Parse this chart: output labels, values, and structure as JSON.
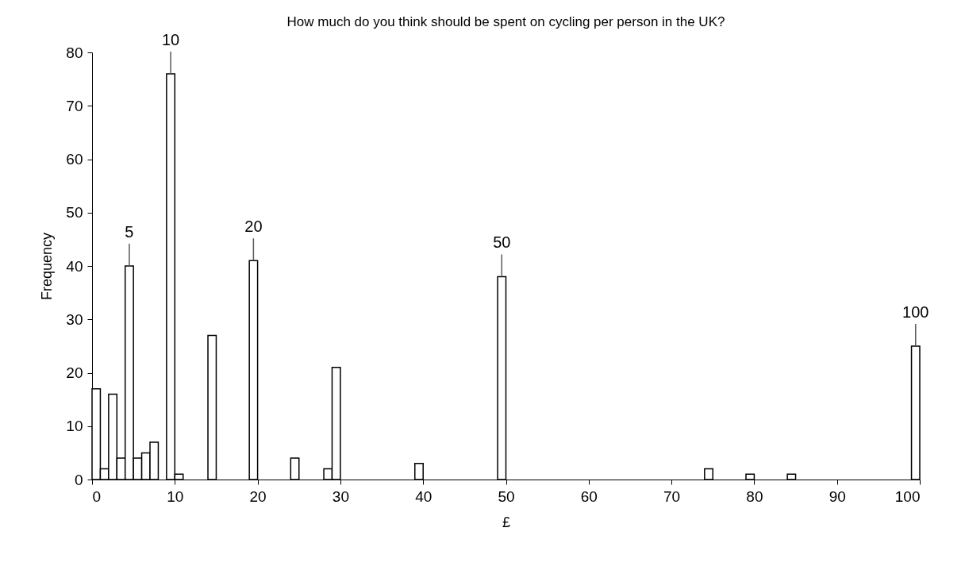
{
  "chart_data": {
    "type": "histogram",
    "title": "How much do you think should be spent on cycling per person in the UK?",
    "xlabel": "£",
    "ylabel": "Frequency",
    "bins": [
      0,
      1,
      2,
      3,
      4,
      5,
      6,
      7,
      8,
      9,
      10,
      11,
      12,
      13,
      14,
      15,
      16,
      17,
      18,
      19,
      20,
      21,
      22,
      23,
      24,
      25,
      26,
      27,
      28,
      29,
      30,
      31,
      32,
      33,
      34,
      35,
      36,
      37,
      38,
      39,
      40,
      41,
      42,
      43,
      44,
      45,
      46,
      47,
      48,
      49,
      50,
      51,
      52,
      53,
      54,
      55,
      56,
      57,
      58,
      59,
      60,
      61,
      62,
      63,
      64,
      65,
      66,
      67,
      68,
      69,
      70,
      71,
      72,
      73,
      74,
      75,
      76,
      77,
      78,
      79,
      80,
      81,
      82,
      83,
      84,
      85,
      86,
      87,
      88,
      89,
      90,
      91,
      92,
      93,
      94,
      95,
      96,
      97,
      98,
      99,
      100
    ],
    "values": [
      17,
      2,
      16,
      4,
      40,
      4,
      5,
      7,
      0,
      76,
      1,
      0,
      0,
      0,
      27,
      0,
      0,
      0,
      0,
      41,
      0,
      0,
      0,
      0,
      4,
      0,
      0,
      0,
      2,
      21,
      0,
      0,
      0,
      0,
      0,
      0,
      0,
      0,
      0,
      3,
      0,
      0,
      0,
      0,
      0,
      0,
      0,
      0,
      0,
      38,
      0,
      0,
      0,
      0,
      0,
      0,
      0,
      0,
      0,
      0,
      0,
      0,
      0,
      0,
      0,
      0,
      0,
      0,
      0,
      0,
      0,
      0,
      0,
      0,
      2,
      0,
      0,
      0,
      0,
      1,
      0,
      0,
      0,
      0,
      1,
      0,
      0,
      0,
      0,
      0,
      0,
      0,
      0,
      0,
      0,
      0,
      0,
      0,
      0,
      25
    ],
    "color": "#ffffff",
    "xlim": [
      0,
      100
    ],
    "xticks": [
      0,
      10,
      20,
      30,
      40,
      50,
      60,
      70,
      80,
      90,
      100
    ],
    "ylim": [
      0,
      80
    ],
    "yticks": [
      0,
      10,
      20,
      30,
      40,
      50,
      60,
      70,
      80
    ],
    "grid": false,
    "annotations": [
      {
        "text": "5",
        "x": 4.5,
        "y": 40
      },
      {
        "text": "10",
        "x": 9.5,
        "y": 76
      },
      {
        "text": "20",
        "x": 19.5,
        "y": 41
      },
      {
        "text": "50",
        "x": 49.5,
        "y": 38
      },
      {
        "text": "100",
        "x": 99.5,
        "y": 25
      }
    ]
  }
}
